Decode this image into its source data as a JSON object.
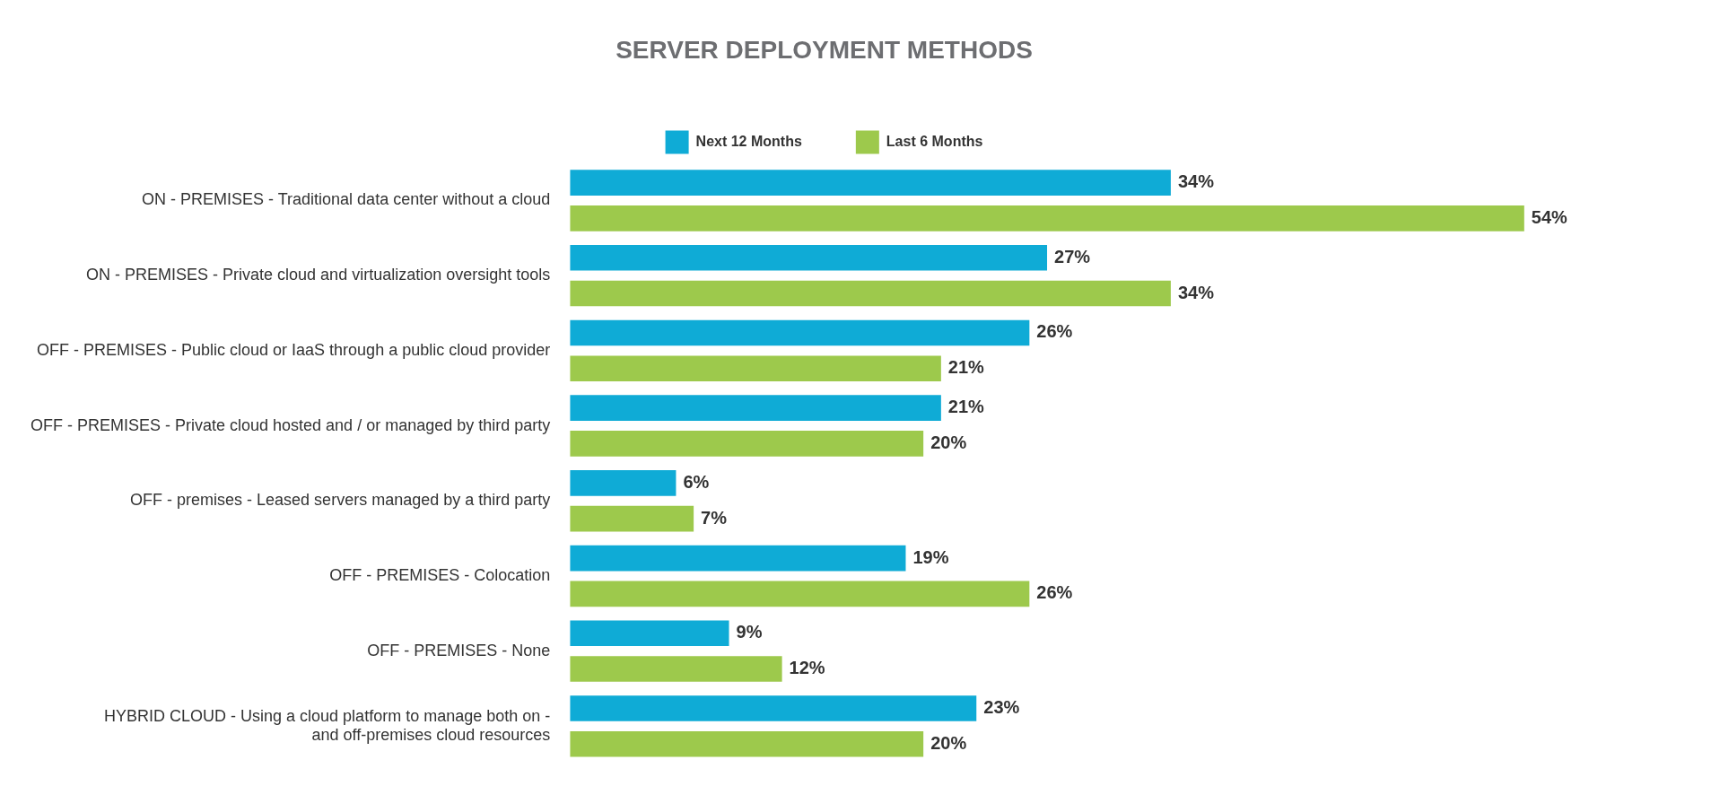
{
  "chart_data": {
    "type": "bar",
    "orientation": "horizontal",
    "title": "SERVER DEPLOYMENT METHODS",
    "legend": "top",
    "categories": [
      "ON - PREMISES - Traditional data center without a cloud",
      "ON - PREMISES - Private cloud and virtualization oversight tools",
      "OFF - PREMISES - Public cloud or IaaS through a public cloud provider",
      "OFF - PREMISES - Private cloud hosted and / or managed by third party",
      "OFF - premises - Leased servers managed by a third party",
      "OFF - PREMISES - Colocation",
      "OFF - PREMISES - None",
      "HYBRID CLOUD - Using a cloud platform to manage both on - and off-premises cloud resources"
    ],
    "series": [
      {
        "name": "Next 12 Months",
        "color": "#0fabd6",
        "values": [
          34,
          27,
          26,
          21,
          6,
          19,
          9,
          23
        ],
        "value_labels": [
          "34%",
          "27%",
          "26%",
          "21%",
          "6%",
          "19%",
          "9%",
          "23%"
        ]
      },
      {
        "name": "Last 6 Months",
        "color": "#9dc94c",
        "values": [
          54,
          34,
          21,
          20,
          7,
          26,
          12,
          20
        ],
        "value_labels": [
          "54%",
          "34%",
          "21%",
          "20%",
          "7%",
          "26%",
          "12%",
          "20%"
        ]
      }
    ]
  }
}
